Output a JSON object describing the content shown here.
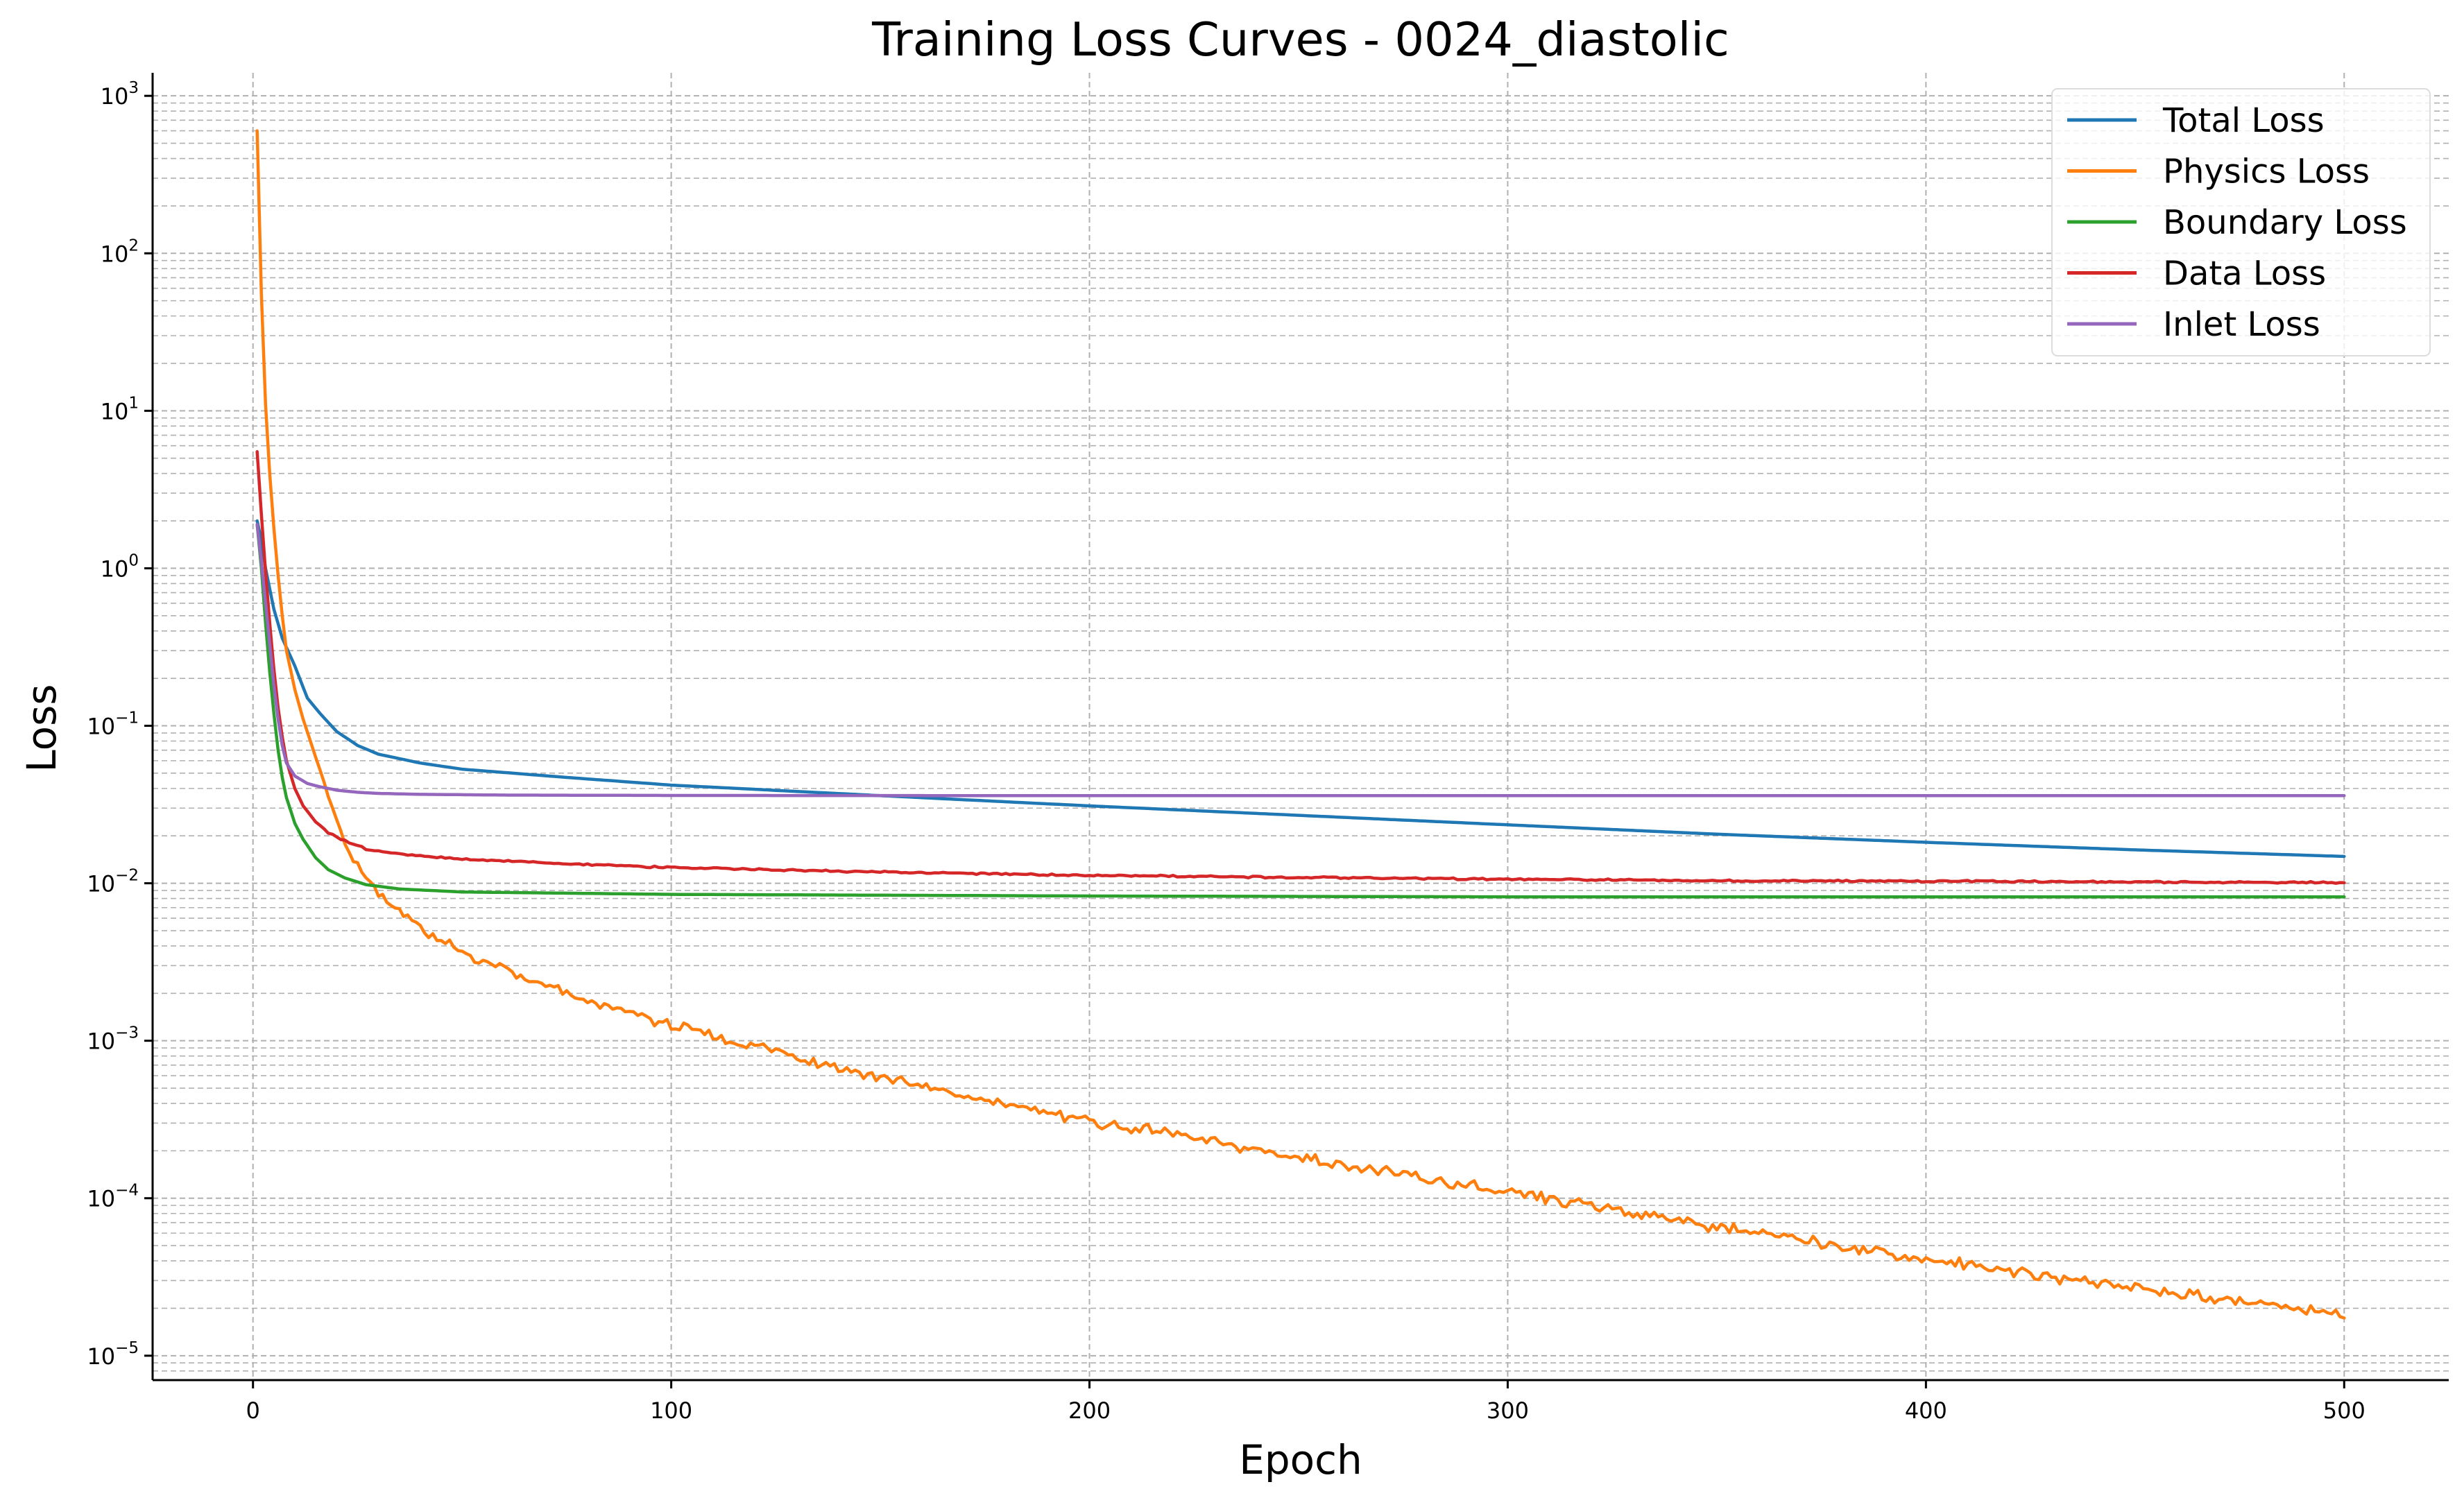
{
  "chart_data": {
    "type": "line",
    "title": "Training Loss Curves - 0024_diastolic",
    "xlabel": "Epoch",
    "ylabel": "Loss",
    "xlim": [
      -24,
      525
    ],
    "ylim": [
      7e-06,
      1400
    ],
    "yscale": "log",
    "grid": true,
    "legend_position": "top-right",
    "x_ticks": [
      {
        "value": 0,
        "label": "0"
      },
      {
        "value": 100,
        "label": "100"
      },
      {
        "value": 200,
        "label": "200"
      },
      {
        "value": 300,
        "label": "300"
      },
      {
        "value": 400,
        "label": "400"
      },
      {
        "value": 500,
        "label": "500"
      }
    ],
    "y_ticks": [
      {
        "value": 1e-05,
        "base": "10",
        "exp": "−5"
      },
      {
        "value": 0.0001,
        "base": "10",
        "exp": "−4"
      },
      {
        "value": 0.001,
        "base": "10",
        "exp": "−3"
      },
      {
        "value": 0.01,
        "base": "10",
        "exp": "−2"
      },
      {
        "value": 0.1,
        "base": "10",
        "exp": "−1"
      },
      {
        "value": 1,
        "base": "10",
        "exp": "0"
      },
      {
        "value": 10,
        "base": "10",
        "exp": "1"
      },
      {
        "value": 100,
        "base": "10",
        "exp": "2"
      },
      {
        "value": 1000,
        "base": "10",
        "exp": "3"
      }
    ],
    "series": [
      {
        "name": "Total Loss",
        "color": "#1f77b4",
        "x": [
          1,
          2,
          3,
          5,
          7,
          10,
          13,
          16,
          20,
          25,
          30,
          40,
          50,
          75,
          100,
          150,
          200,
          250,
          300,
          350,
          400,
          450,
          500
        ],
        "y": [
          2.0,
          1.5,
          1.0,
          0.55,
          0.36,
          0.24,
          0.15,
          0.12,
          0.092,
          0.075,
          0.066,
          0.058,
          0.053,
          0.047,
          0.042,
          0.036,
          0.031,
          0.027,
          0.0235,
          0.0205,
          0.0182,
          0.0163,
          0.0148
        ],
        "noise": 0
      },
      {
        "name": "Physics Loss",
        "color": "#ff7f0e",
        "x": [
          1,
          2,
          3,
          4,
          5,
          6,
          7,
          8,
          10,
          12,
          15,
          18,
          21,
          24,
          27,
          30,
          35,
          40,
          50,
          60,
          80,
          100,
          125,
          150,
          175,
          200,
          225,
          250,
          275,
          300,
          325,
          350,
          375,
          400,
          425,
          450,
          475,
          500
        ],
        "y": [
          600,
          55,
          11,
          4.0,
          1.8,
          0.9,
          0.5,
          0.3,
          0.17,
          0.11,
          0.063,
          0.035,
          0.022,
          0.0145,
          0.011,
          0.0085,
          0.0065,
          0.0052,
          0.0036,
          0.0028,
          0.0018,
          0.00125,
          0.00085,
          0.00058,
          0.00042,
          0.00031,
          0.00024,
          0.00018,
          0.00014,
          0.000108,
          8.5e-05,
          6.6e-05,
          5.2e-05,
          4.1e-05,
          3.3e-05,
          2.7e-05,
          2.2e-05,
          1.85e-05
        ],
        "noise": 0.045
      },
      {
        "name": "Boundary Loss",
        "color": "#2ca02c",
        "x": [
          1,
          2,
          3,
          4,
          5,
          6,
          7,
          8,
          10,
          12,
          15,
          18,
          22,
          27,
          35,
          50,
          100,
          200,
          300,
          400,
          500
        ],
        "y": [
          1.9,
          1.0,
          0.45,
          0.22,
          0.12,
          0.07,
          0.047,
          0.035,
          0.024,
          0.019,
          0.0145,
          0.0122,
          0.0108,
          0.0098,
          0.0092,
          0.0088,
          0.0085,
          0.0083,
          0.0082,
          0.0082,
          0.0082
        ],
        "noise": 0
      },
      {
        "name": "Data Loss",
        "color": "#d62728",
        "x": [
          1,
          2,
          3,
          4,
          5,
          6,
          7,
          8,
          10,
          12,
          15,
          18,
          22,
          27,
          35,
          50,
          75,
          100,
          150,
          200,
          250,
          300,
          350,
          400,
          450,
          500
        ],
        "y": [
          5.5,
          2.2,
          0.95,
          0.45,
          0.23,
          0.13,
          0.085,
          0.06,
          0.04,
          0.031,
          0.0245,
          0.021,
          0.0185,
          0.0165,
          0.0153,
          0.0142,
          0.0133,
          0.0126,
          0.0118,
          0.0112,
          0.0109,
          0.0106,
          0.0104,
          0.0103,
          0.0102,
          0.0101
        ],
        "noise": 0.007
      },
      {
        "name": "Inlet Loss",
        "color": "#9467bd",
        "x": [
          1,
          2,
          3,
          4,
          5,
          6,
          7,
          8,
          10,
          13,
          16,
          20,
          25,
          30,
          40,
          60,
          100,
          200,
          300,
          400,
          500
        ],
        "y": [
          1.9,
          1.1,
          0.6,
          0.33,
          0.18,
          0.11,
          0.075,
          0.058,
          0.048,
          0.043,
          0.041,
          0.039,
          0.0378,
          0.0372,
          0.0367,
          0.0363,
          0.0361,
          0.036,
          0.036,
          0.036,
          0.036
        ],
        "noise": 0
      }
    ]
  }
}
